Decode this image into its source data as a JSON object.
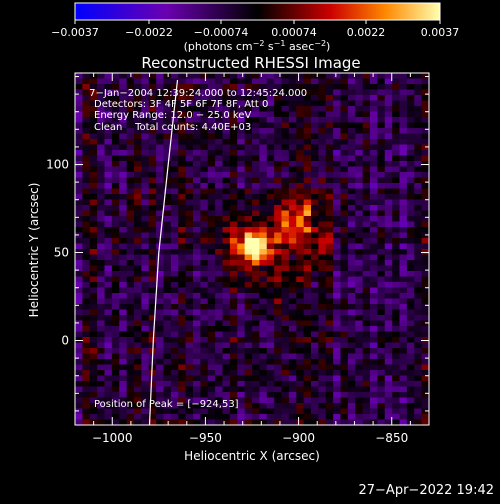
{
  "chart_data": {
    "type": "heatmap",
    "title": "Reconstructed RHESSI Image",
    "xlabel": "Heliocentric X (arcsec)",
    "ylabel": "Heliocentric Y (arcsec)",
    "xlim": [
      -1020,
      -830
    ],
    "ylim": [
      -48,
      152
    ],
    "x_ticks": [
      -1000,
      -950,
      -900,
      -850
    ],
    "x_tick_labels": [
      "−1000",
      "−950",
      "−900",
      "−850"
    ],
    "y_ticks": [
      0,
      50,
      100
    ],
    "y_tick_labels": [
      "0",
      "50",
      "100"
    ],
    "colorbar": {
      "range": [
        -0.0037,
        0.0037
      ],
      "ticks": [
        -0.0037,
        -0.0022,
        -0.00074,
        0.00074,
        0.0022,
        0.0037
      ],
      "tick_labels": [
        "−0.0037",
        "−0.0022",
        "−0.00074",
        "0.00074",
        "0.0022",
        "0.0037"
      ],
      "units_parts": [
        "(photons cm",
        "−2",
        " s",
        "−1",
        " asec",
        "−2",
        ")"
      ],
      "colors": [
        "#0000ff",
        "#6a00b0",
        "#000000",
        "#cc0000",
        "#ff8800",
        "#ffffb0"
      ]
    },
    "annotations": [
      " 7−Jan−2004 12:39:24.000 to 12:45:24.000",
      "Detectors: 3F 4F 5F 6F 7F 8F, Att 0",
      "Energy Range: 12.0 − 25.0 keV",
      "Clean    Total counts: 4.40E+03"
    ],
    "peak_label": "Position of Peak = [−924,53]",
    "peak": [
      -924,
      53
    ],
    "peak_value": 0.0037,
    "secondary_sources": [
      {
        "x": -905,
        "y": 68,
        "value": 0.0016
      },
      {
        "x": -895,
        "y": 72,
        "value": 0.0013
      },
      {
        "x": -890,
        "y": 50,
        "value": 0.0011
      },
      {
        "x": -910,
        "y": 30,
        "value": 0.0009
      }
    ],
    "limb_line": [
      [
        -965,
        148
      ],
      [
        -970,
        100
      ],
      [
        -975,
        50
      ],
      [
        -978,
        0
      ],
      [
        -980,
        -48
      ]
    ]
  },
  "timestamp": "27−Apr−2022 19:42"
}
